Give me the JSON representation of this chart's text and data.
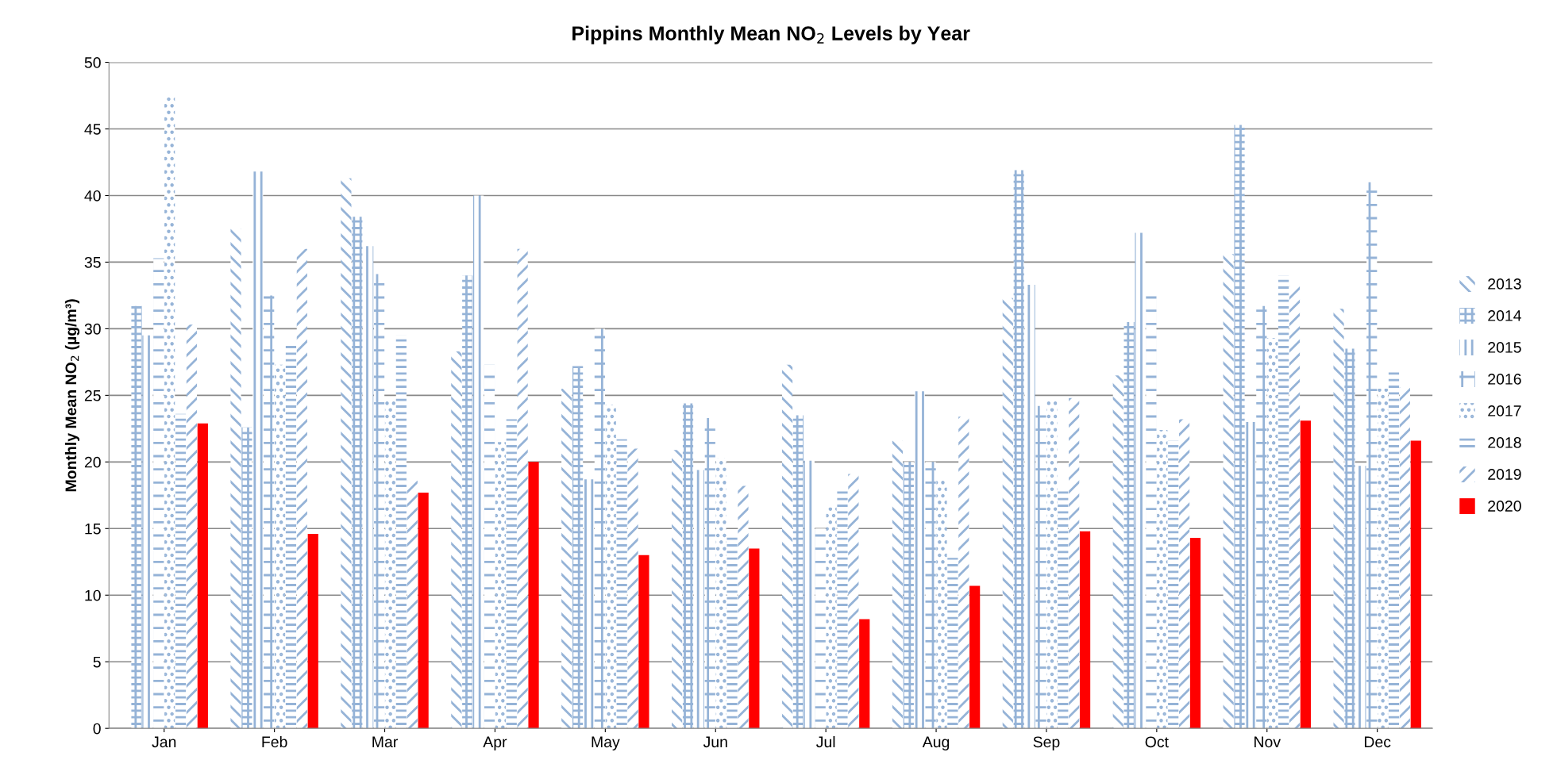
{
  "chart_data": {
    "type": "bar",
    "title": "Pippins Monthly Mean NO$_{2}$ Levels by Year",
    "ylabel": "Monthly Mean NO$_{2}$ (µg/m³)",
    "categories": [
      "Jan",
      "Feb",
      "Mar",
      "Apr",
      "May",
      "Jun",
      "Jul",
      "Aug",
      "Sep",
      "Oct",
      "Nov",
      "Dec"
    ],
    "series": [
      {
        "name": "2013",
        "color": "#95b3d7",
        "values": [
          null,
          37.5,
          41.3,
          28.3,
          25.5,
          20.9,
          27.3,
          21.6,
          32.3,
          26.5,
          35.6,
          31.5
        ]
      },
      {
        "name": "2014",
        "color": "#95b3d7",
        "values": [
          31.7,
          22.6,
          38.4,
          34.0,
          27.2,
          24.4,
          23.5,
          20.0,
          41.9,
          30.5,
          45.3,
          28.5
        ]
      },
      {
        "name": "2015",
        "color": "#95b3d7",
        "values": [
          29.5,
          41.8,
          36.2,
          40.0,
          18.7,
          19.4,
          20.1,
          25.3,
          33.3,
          37.2,
          23.0,
          19.7
        ]
      },
      {
        "name": "2016",
        "color": "#95b3d7",
        "values": [
          35.3,
          32.5,
          34.1,
          27.3,
          30.0,
          23.3,
          15.0,
          20.0,
          24.2,
          32.5,
          31.7,
          41.0
        ]
      },
      {
        "name": "2017",
        "color": "#95b3d7",
        "values": [
          47.4,
          27.3,
          24.6,
          21.5,
          24.3,
          20.3,
          16.6,
          18.7,
          24.7,
          22.4,
          29.3,
          25.5
        ]
      },
      {
        "name": "2018",
        "color": "#95b3d7",
        "values": [
          23.6,
          28.8,
          29.5,
          23.2,
          21.7,
          14.4,
          18.0,
          12.8,
          17.9,
          21.6,
          34.0,
          27.0
        ]
      },
      {
        "name": "2019",
        "color": "#95b3d7",
        "values": [
          30.3,
          36.0,
          18.6,
          36.0,
          21.0,
          18.2,
          19.1,
          23.4,
          24.8,
          23.2,
          33.2,
          25.6
        ]
      },
      {
        "name": "2020",
        "color": "#ff0000",
        "values": [
          22.9,
          14.6,
          17.7,
          20.0,
          13.0,
          13.5,
          8.2,
          10.7,
          14.8,
          14.3,
          23.1,
          21.6
        ]
      }
    ],
    "ylim": [
      0,
      50
    ],
    "yticks": [
      0,
      5,
      10,
      15,
      20,
      25,
      30,
      35,
      40,
      45,
      50
    ],
    "grid": "y",
    "legend": "right"
  }
}
